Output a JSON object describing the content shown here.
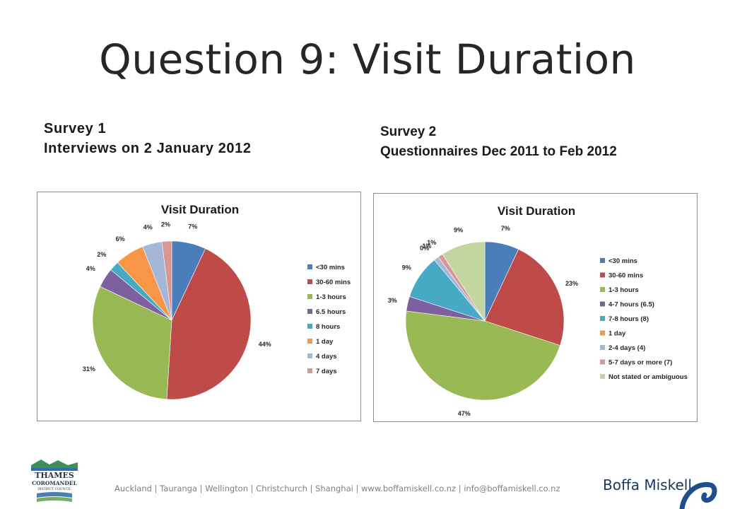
{
  "slide": {
    "title": "Question 9: Visit Duration"
  },
  "survey1": {
    "heading": "Survey 1",
    "subheading": "Interviews on 2 January 2012"
  },
  "survey2": {
    "heading": "Survey 2",
    "subheading": "Questionnaires Dec 2011 to Feb 2012"
  },
  "chart_data": [
    {
      "type": "pie",
      "title": "Visit Duration",
      "legend": "right",
      "categories": [
        "<30 mins",
        "30-60 mins",
        "1-3 hours",
        "6.5 hours",
        "8 hours",
        "1 day",
        "4 days",
        "7 days"
      ],
      "values": [
        7,
        44,
        31,
        4,
        2,
        6,
        4,
        2
      ],
      "labels": [
        "7%",
        "44%",
        "31%",
        "4%",
        "2%",
        "6%",
        "4%",
        "2%"
      ],
      "colors": [
        "#4a7ebb",
        "#be4b48",
        "#98b954",
        "#7d60a0",
        "#46aac5",
        "#f79646",
        "#a5b6d8",
        "#da9694"
      ]
    },
    {
      "type": "pie",
      "title": "Visit Duration",
      "legend": "right",
      "categories": [
        "<30 mins",
        "30-60 mins",
        "1-3 hours",
        "4-7 hours (6.5)",
        "7-8 hours (8)",
        "1 day",
        "2-4 days (4)",
        "5-7 days or more (7)",
        "Not stated or ambiguous"
      ],
      "values": [
        7,
        23,
        47,
        3,
        9,
        0,
        1,
        1,
        9
      ],
      "labels": [
        "7%",
        "23%",
        "47%",
        "3%",
        "9%",
        "0%",
        "1%",
        "1%",
        "9%"
      ],
      "colors": [
        "#4a7ebb",
        "#be4b48",
        "#98b954",
        "#7d60a0",
        "#46aac5",
        "#f79646",
        "#a5b6d8",
        "#da9694",
        "#c4d6a0"
      ]
    }
  ],
  "footer": {
    "council_logo_text": "THAMES COROMANDEL DISTRICT COUNCIL",
    "text": "Auckland | Tauranga | Wellington | Christchurch | Shanghai | www.boffamiskell.co.nz | info@boffamiskell.co.nz",
    "brand": "Boffa Miskell"
  }
}
